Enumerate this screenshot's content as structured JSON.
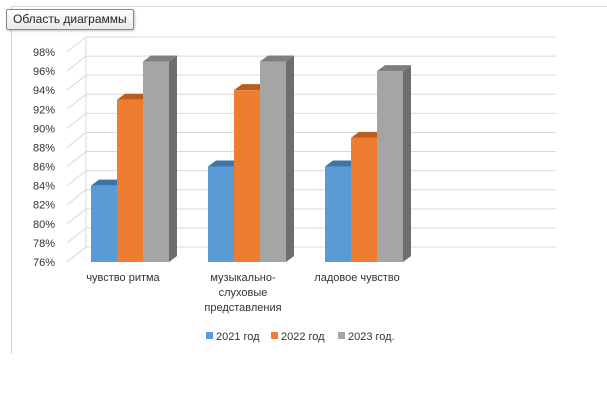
{
  "window": {
    "tooltip": "Область диаграммы"
  },
  "colors": {
    "series": [
      "#5b9bd5",
      "#ed7d31",
      "#a5a5a5"
    ],
    "top": [
      "#3d74a8",
      "#b85d1f",
      "#7f7f7f"
    ],
    "side": [
      "#44779f",
      "#b3601f",
      "#6e6e6e"
    ],
    "grid": "#d9d9d9"
  },
  "chart_data": {
    "type": "bar",
    "style": "3d-clustered-column",
    "title": "",
    "xlabel": "",
    "ylabel": "",
    "categories": [
      "чувство ритма",
      "музыкально-слуховые представления",
      "ладовое чувство"
    ],
    "category_labels": [
      [
        "чувство ритма"
      ],
      [
        "музыкально-",
        "слуховые",
        "представления"
      ],
      [
        "ладовое чувство"
      ]
    ],
    "series": [
      {
        "name": "2021 год",
        "values": [
          84,
          86,
          86
        ]
      },
      {
        "name": "2022 год",
        "values": [
          93,
          94,
          89
        ]
      },
      {
        "name": "2023 год.",
        "values": [
          97,
          97,
          96
        ]
      }
    ],
    "ylim": [
      76,
      98
    ],
    "ytick_step": 2,
    "yticks": [
      "76%",
      "78%",
      "80%",
      "82%",
      "84%",
      "86%",
      "88%",
      "90%",
      "92%",
      "94%",
      "96%",
      "98%"
    ],
    "grid": true,
    "legend_position": "bottom"
  }
}
